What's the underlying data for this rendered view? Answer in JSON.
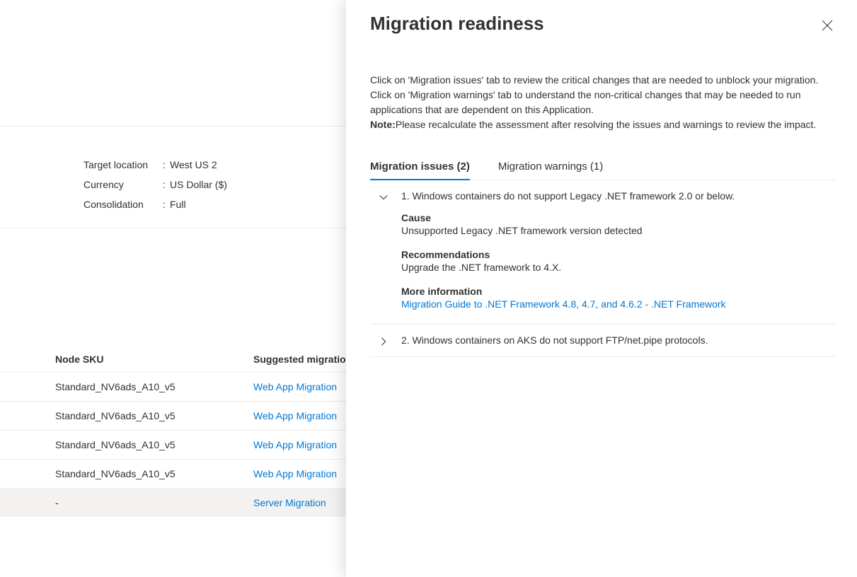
{
  "background": {
    "properties": [
      {
        "label": "Target location",
        "value": "West US 2"
      },
      {
        "label": "Currency",
        "value": "US Dollar ($)"
      },
      {
        "label": "Consolidation",
        "value": "Full"
      }
    ],
    "table": {
      "columns": {
        "nodesku": "Node SKU",
        "migration": "Suggested migration tool"
      },
      "rows": [
        {
          "nodesku": "Standard_NV6ads_A10_v5",
          "migration": "Web App Migration",
          "highlighted": false
        },
        {
          "nodesku": "Standard_NV6ads_A10_v5",
          "migration": "Web App Migration",
          "highlighted": false
        },
        {
          "nodesku": "Standard_NV6ads_A10_v5",
          "migration": "Web App Migration",
          "highlighted": false
        },
        {
          "nodesku": "Standard_NV6ads_A10_v5",
          "migration": "Web App Migration",
          "highlighted": false
        },
        {
          "nodesku": "-",
          "migration": "Server Migration",
          "highlighted": true
        }
      ]
    }
  },
  "panel": {
    "title": "Migration readiness",
    "description_part1": "Click on 'Migration issues' tab to review the critical changes that are needed to unblock your migration. Click on 'Migration warnings' tab to understand the non-critical changes that may be needed to run applications that are dependent on this Application.",
    "note_label": "Note:",
    "note_text": "Please recalculate the assessment after resolving the issues and warnings to review the impact.",
    "tabs": {
      "issues": "Migration issues (2)",
      "warnings": "Migration warnings (1)"
    },
    "issues": [
      {
        "title": "1. Windows containers do not support Legacy .NET framework 2.0 or below.",
        "expanded": true,
        "cause_label": "Cause",
        "cause_text": "Unsupported Legacy .NET framework version detected",
        "recommendations_label": "Recommendations",
        "recommendations_text": "Upgrade the .NET framework to 4.X.",
        "more_info_label": "More information",
        "more_info_link": "Migration Guide to .NET Framework 4.8, 4.7, and 4.6.2 - .NET Framework"
      },
      {
        "title": "2. Windows containers on AKS do not support FTP/net.pipe protocols.",
        "expanded": false
      }
    ]
  },
  "colors": {
    "link": "#0078d4",
    "text": "#323130",
    "border": "#edebe9",
    "highlight_bg": "#f3f2f1"
  }
}
